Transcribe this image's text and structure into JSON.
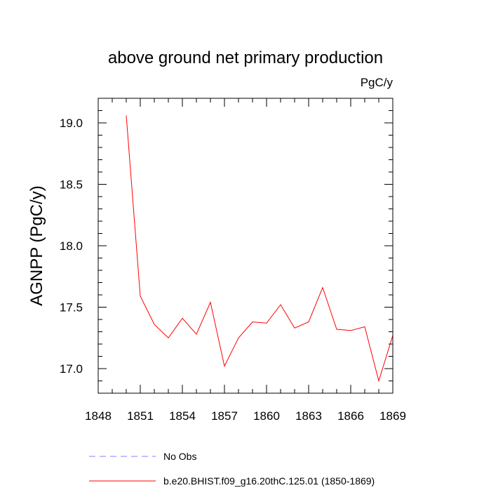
{
  "chart_data": {
    "type": "line",
    "title": "above ground net primary production",
    "units_label": "PgC/y",
    "ylabel": "AGNPP  (PgC/y)",
    "xlabel": "",
    "xlim": [
      1848,
      1869
    ],
    "ylim": [
      16.8,
      19.2
    ],
    "x_ticks": [
      1848,
      1851,
      1854,
      1857,
      1860,
      1863,
      1866,
      1869
    ],
    "x_tick_labels": [
      "1848",
      "1851",
      "1854",
      "1857",
      "1860",
      "1863",
      "1866",
      "1869"
    ],
    "y_ticks": [
      17.0,
      17.5,
      18.0,
      18.5,
      19.0
    ],
    "y_tick_labels": [
      "17.0",
      "17.5",
      "18.0",
      "18.5",
      "19.0"
    ],
    "grid": false,
    "series": [
      {
        "name": "b.e20.BHIST.f09_g16.20thC.125.01 (1850-1869)",
        "color": "#ff0000",
        "style": "solid",
        "x": [
          1850,
          1851,
          1852,
          1853,
          1854,
          1855,
          1856,
          1857,
          1858,
          1859,
          1860,
          1861,
          1862,
          1863,
          1864,
          1865,
          1866,
          1867,
          1868,
          1869
        ],
        "values": [
          19.06,
          17.59,
          17.36,
          17.25,
          17.41,
          17.28,
          17.54,
          17.02,
          17.25,
          17.38,
          17.37,
          17.52,
          17.33,
          17.38,
          17.66,
          17.32,
          17.31,
          17.34,
          16.9,
          17.27
        ]
      }
    ],
    "legend": {
      "placement": "bottom",
      "entries": [
        {
          "label": "No Obs",
          "color": "#8080ff",
          "style": "dashed"
        },
        {
          "label": "b.e20.BHIST.f09_g16.20thC.125.01 (1850-1869)",
          "color": "#ff0000",
          "style": "solid"
        }
      ]
    }
  }
}
